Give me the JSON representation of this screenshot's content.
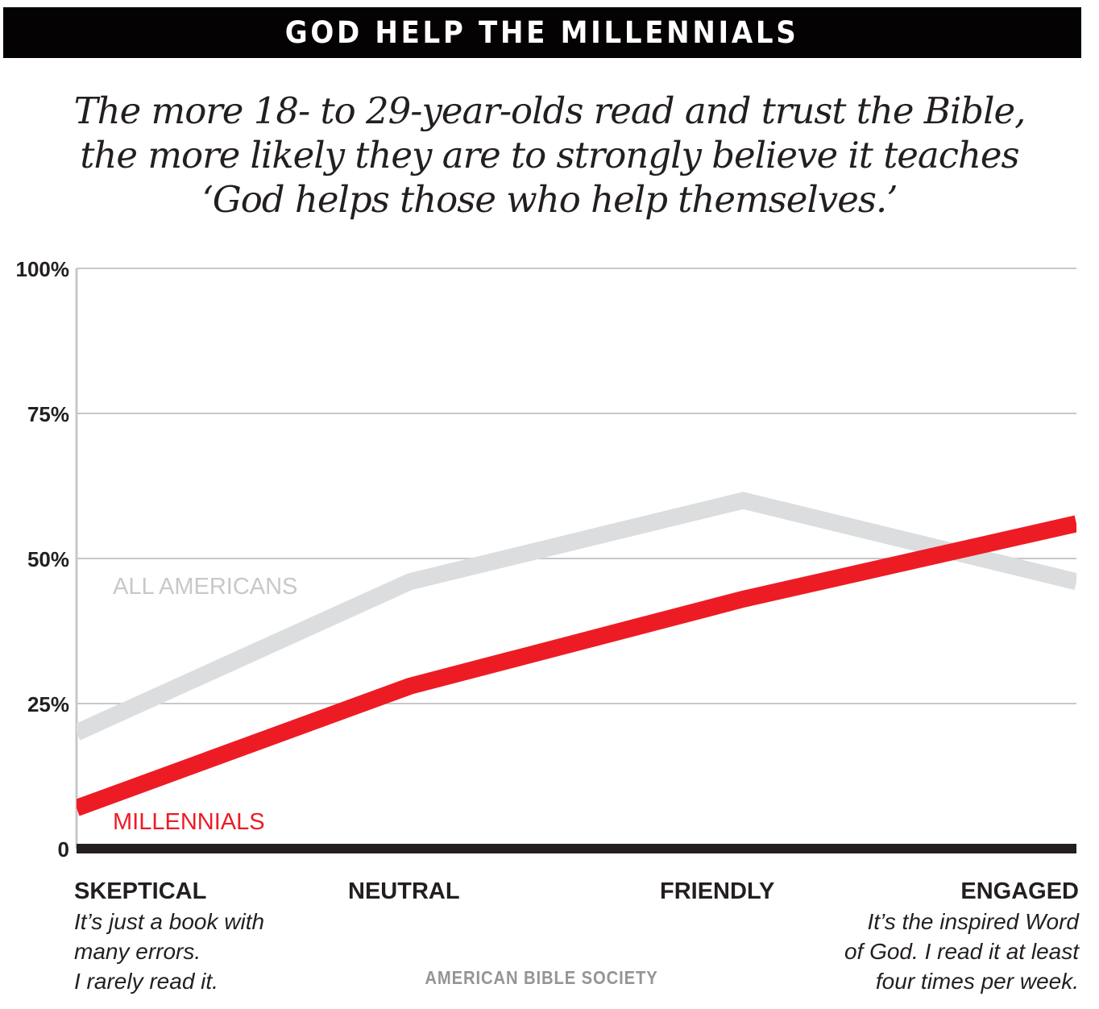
{
  "banner": {
    "title": "GOD HELP THE MILLENNIALS"
  },
  "subtitle": {
    "lines": [
      "The more 18- to 29-year-olds read and trust the Bible,",
      "the more likely they are to strongly believe it teaches",
      "‘God helps those who help themselves.’"
    ]
  },
  "source": "AMERICAN BIBLE SOCIETY",
  "colors": {
    "millennials": "#ed1c24",
    "all_americans": "#dcdddf",
    "all_americans_label": "#c7c8ca",
    "grid": "#c7c8ca",
    "baseline": "#231f20",
    "banner": "#050203"
  },
  "chart_data": {
    "type": "line",
    "title": "GOD HELP THE MILLENNIALS",
    "subtitle": "The more 18- to 29-year-olds read and trust the Bible, the more likely they are to strongly believe it teaches ‘God helps those who help themselves.’",
    "xlabel": "",
    "ylabel": "",
    "categories": [
      "SKEPTICAL",
      "NEUTRAL",
      "FRIENDLY",
      "ENGAGED"
    ],
    "category_descriptions": [
      [
        "It’s just a book with",
        "many errors.",
        "I rarely read it."
      ],
      [],
      [],
      [
        "It’s the inspired Word",
        "of God. I read it at least",
        "four times per week."
      ]
    ],
    "series": [
      {
        "name": "ALL AMERICANS",
        "values": [
          20,
          46,
          60,
          46
        ]
      },
      {
        "name": "MILLENNIALS",
        "values": [
          7,
          28,
          43,
          56
        ]
      }
    ],
    "ylim": [
      0,
      100
    ],
    "yticks": [
      0,
      25,
      50,
      75,
      100
    ],
    "ytick_labels": [
      "0",
      "25%",
      "50%",
      "75%",
      "100%"
    ],
    "grid": true,
    "legend": "inline-labels",
    "source": "AMERICAN BIBLE SOCIETY"
  }
}
